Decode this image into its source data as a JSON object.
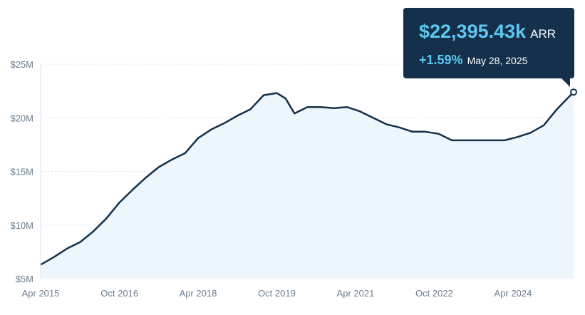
{
  "chart_data": {
    "type": "area",
    "title": "",
    "xlabel": "",
    "ylabel": "",
    "y_unit": "$M",
    "ylim": [
      5,
      25
    ],
    "y_ticks": [
      {
        "value": 5,
        "label": "$5M"
      },
      {
        "value": 10,
        "label": "$10M"
      },
      {
        "value": 15,
        "label": "$15M"
      },
      {
        "value": 20,
        "label": "$20M"
      },
      {
        "value": 25,
        "label": "$25M"
      }
    ],
    "xlim": [
      "2015-04-01",
      "2025-05-28"
    ],
    "x_ticks": [
      {
        "value": "2015-04-01",
        "label": "Apr 2015"
      },
      {
        "value": "2016-10-01",
        "label": "Oct 2016"
      },
      {
        "value": "2018-04-01",
        "label": "Apr 2018"
      },
      {
        "value": "2019-10-01",
        "label": "Oct 2019"
      },
      {
        "value": "2021-04-01",
        "label": "Apr 2021"
      },
      {
        "value": "2022-10-01",
        "label": "Oct 2022"
      },
      {
        "value": "2024-04-01",
        "label": "Apr 2024"
      }
    ],
    "grid": true,
    "colors": {
      "line": "#14304a",
      "fill": "#eef6fd"
    },
    "series": [
      {
        "points": [
          [
            "2015-04-01",
            6.3
          ],
          [
            "2015-07-01",
            7.0
          ],
          [
            "2015-10-01",
            7.8
          ],
          [
            "2016-01-01",
            8.4
          ],
          [
            "2016-04-01",
            9.4
          ],
          [
            "2016-07-01",
            10.6
          ],
          [
            "2016-10-01",
            12.1
          ],
          [
            "2017-01-01",
            13.3
          ],
          [
            "2017-04-01",
            14.4
          ],
          [
            "2017-07-01",
            15.4
          ],
          [
            "2017-10-01",
            16.1
          ],
          [
            "2018-01-01",
            16.7
          ],
          [
            "2018-04-01",
            18.1
          ],
          [
            "2018-07-01",
            18.9
          ],
          [
            "2018-10-01",
            19.5
          ],
          [
            "2019-01-01",
            20.2
          ],
          [
            "2019-04-01",
            20.8
          ],
          [
            "2019-07-01",
            22.1
          ],
          [
            "2019-10-01",
            22.3
          ],
          [
            "2019-12-01",
            21.8
          ],
          [
            "2020-02-01",
            20.4
          ],
          [
            "2020-05-01",
            21.0
          ],
          [
            "2020-08-01",
            21.0
          ],
          [
            "2020-11-01",
            20.9
          ],
          [
            "2021-02-01",
            21.0
          ],
          [
            "2021-05-01",
            20.6
          ],
          [
            "2021-08-01",
            20.0
          ],
          [
            "2021-11-01",
            19.4
          ],
          [
            "2022-02-01",
            19.1
          ],
          [
            "2022-05-01",
            18.7
          ],
          [
            "2022-08-01",
            18.7
          ],
          [
            "2022-11-01",
            18.5
          ],
          [
            "2023-02-01",
            17.9
          ],
          [
            "2023-05-01",
            17.9
          ],
          [
            "2023-08-01",
            17.9
          ],
          [
            "2023-11-01",
            17.9
          ],
          [
            "2024-02-01",
            17.9
          ],
          [
            "2024-05-01",
            18.2
          ],
          [
            "2024-08-01",
            18.6
          ],
          [
            "2024-11-01",
            19.3
          ],
          [
            "2025-02-01",
            20.8
          ],
          [
            "2025-05-28",
            22.4
          ]
        ]
      }
    ],
    "highlight": {
      "date": "2025-05-28",
      "value": 22.39543,
      "value_label": "$22,395.43k",
      "unit_label": "ARR",
      "change_label": "+1.59%",
      "date_label": "May 28, 2025"
    }
  }
}
